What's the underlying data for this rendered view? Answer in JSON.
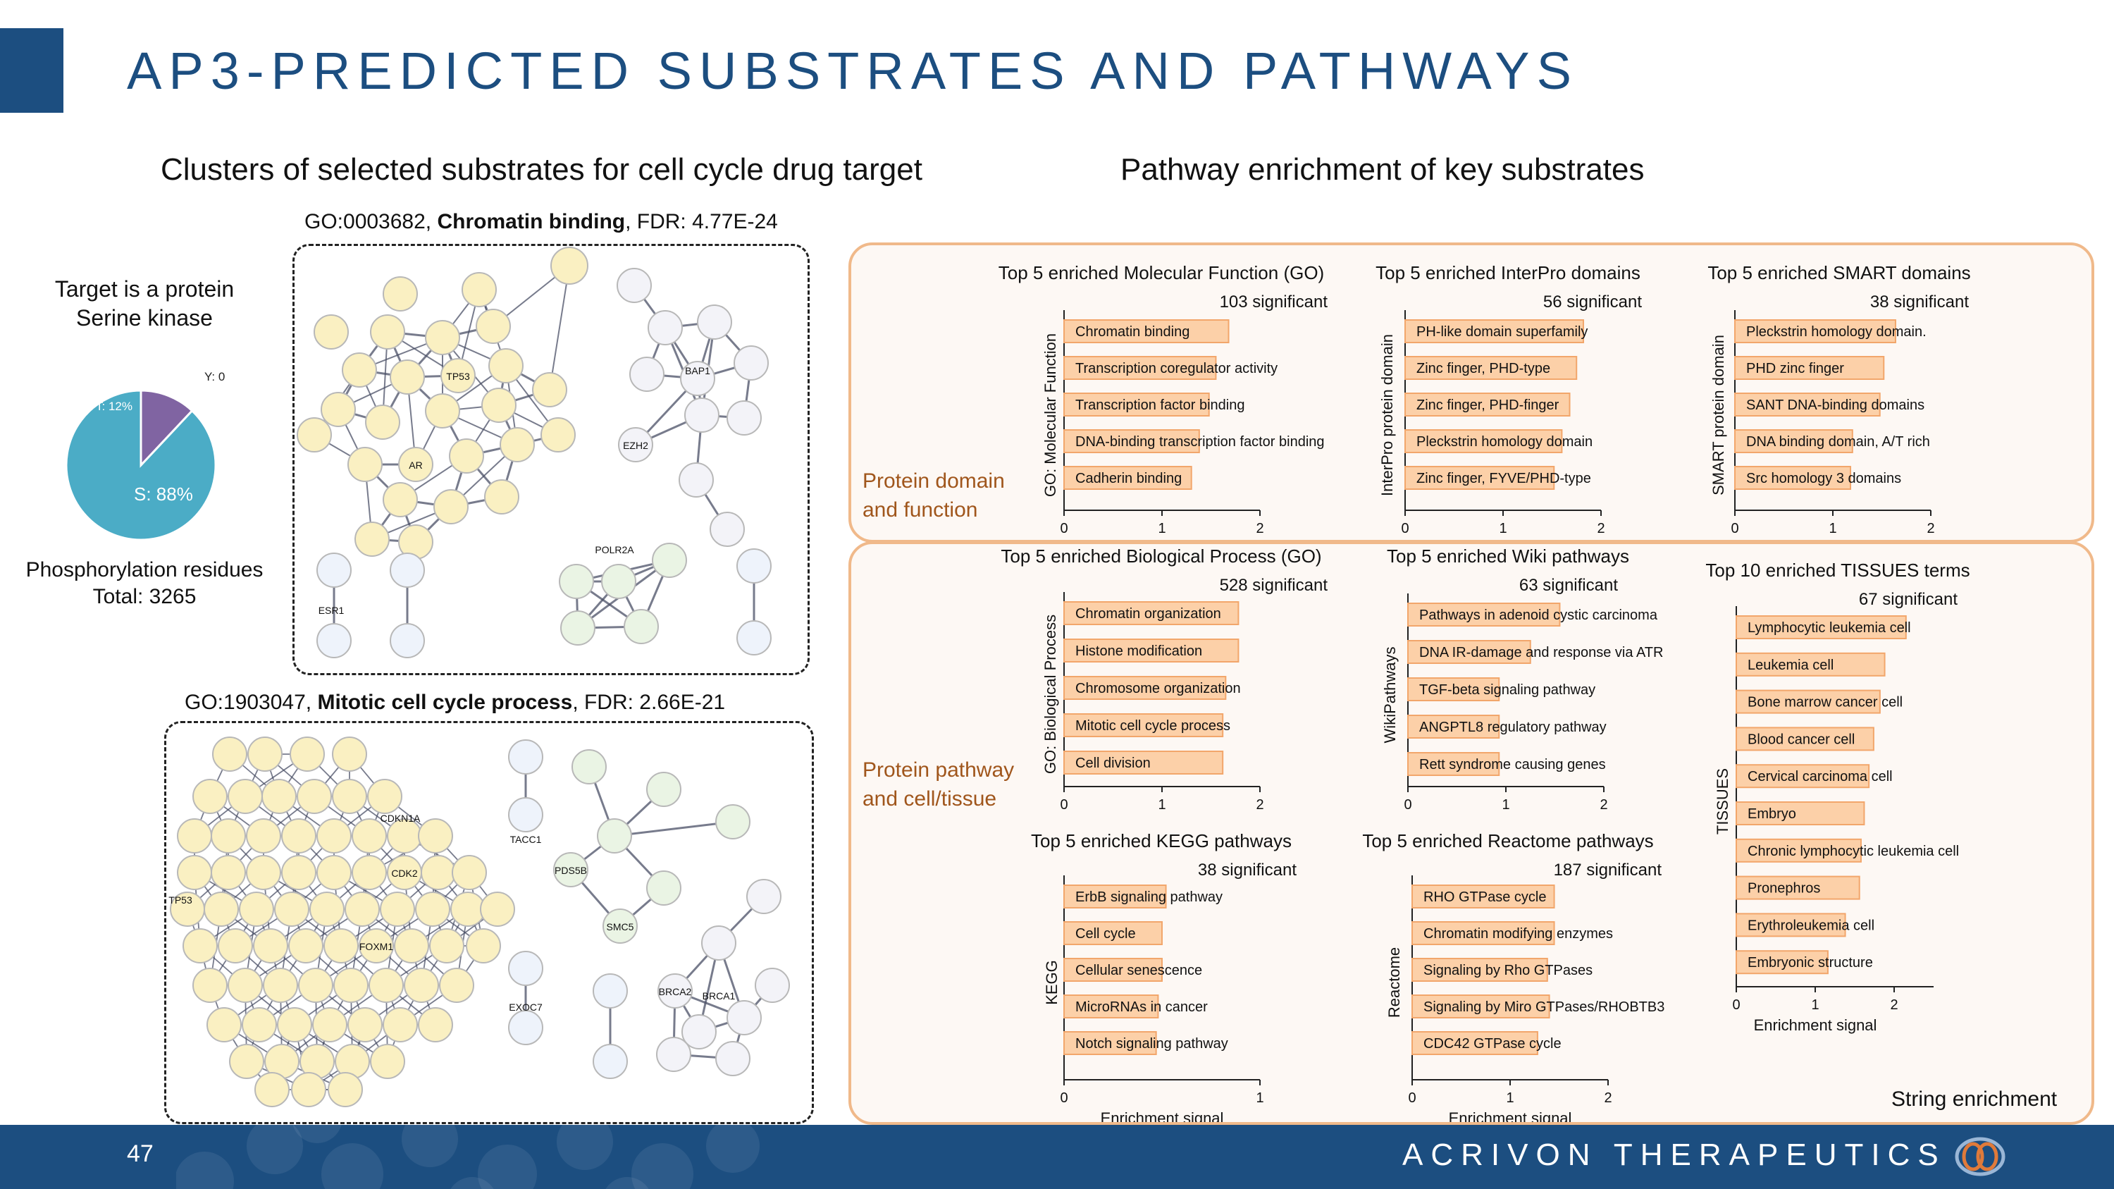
{
  "slide": {
    "title": "AP3-PREDICTED SUBSTRATES AND PATHWAYS",
    "page_number": "47",
    "company": "ACRIVON THERAPEUTICS"
  },
  "left": {
    "heading": "Clusters of selected substrates for cell cycle drug target",
    "target_line1": "Target is a protein",
    "target_line2": "Serine kinase",
    "residues_line1": "Phosphorylation residues",
    "residues_line2": "Total: 3265",
    "go1": {
      "id": "GO:0003682, ",
      "name": "Chromatin binding",
      "fdr": ", FDR: 4.77E-24"
    },
    "go2": {
      "id": "GO:1903047, ",
      "name": "Mitotic cell cycle process",
      "fdr": ", FDR: 2.66E-21"
    },
    "network1_nodes": [
      "TP53",
      "AR",
      "BAP1",
      "EZH2",
      "POLR2A",
      "ESR1"
    ],
    "network2_nodes": [
      "CDKN1A",
      "CDK2",
      "TP53",
      "FOXM1",
      "TACC1",
      "PDS5B",
      "SMC5",
      "EXOC7",
      "BRCA2",
      "BRCA1"
    ]
  },
  "pie": {
    "type": "pie",
    "slices": [
      {
        "label": "S: 88%",
        "value": 88,
        "color": "#4bacc6"
      },
      {
        "label": "T: 12%",
        "value": 12,
        "color": "#8064a2"
      },
      {
        "label": "Y: 0",
        "value": 0,
        "color": "#9bbb59"
      }
    ]
  },
  "right": {
    "heading": "Pathway enrichment of key substrates",
    "panel1_label_line1": "Protein domain",
    "panel1_label_line2": "and function",
    "panel2_label_line1": "Protein pathway",
    "panel2_label_line2": "and cell/tissue",
    "footnote": "String enrichment"
  },
  "chart_data": [
    {
      "id": "mf",
      "type": "bar",
      "title": "Top 5 enriched Molecular Function (GO)",
      "subtitle": "103 significant",
      "ylabel": "GO: Molecular Function",
      "xlabel": "",
      "xlim": [
        0,
        2
      ],
      "xticks": [
        0,
        1,
        2
      ],
      "categories": [
        "Chromatin binding",
        "Transcription coregulator activity",
        "Transcription factor binding",
        "DNA-binding transcription factor binding",
        "Cadherin binding"
      ],
      "values": [
        1.68,
        1.55,
        1.48,
        1.38,
        1.3
      ]
    },
    {
      "id": "interpro",
      "type": "bar",
      "title": "Top 5 enriched InterPro domains",
      "subtitle": "56 significant",
      "ylabel": "InterPro protein domain",
      "xlabel": "",
      "xlim": [
        0,
        2
      ],
      "xticks": [
        0,
        1,
        2
      ],
      "categories": [
        "PH-like domain superfamily",
        "Zinc finger, PHD-type",
        "Zinc finger, PHD-finger",
        "Pleckstrin homology domain",
        "Zinc finger, FYVE/PHD-type"
      ],
      "values": [
        1.82,
        1.75,
        1.68,
        1.6,
        1.52
      ]
    },
    {
      "id": "smart",
      "type": "bar",
      "title": "Top 5 enriched SMART domains",
      "subtitle": "38 significant",
      "ylabel": "SMART protein domain",
      "xlabel": "",
      "xlim": [
        0,
        2
      ],
      "xticks": [
        0,
        1,
        2
      ],
      "categories": [
        "Pleckstrin homology domain.",
        "PHD zinc finger",
        "SANT DNA-binding domains",
        "DNA binding domain, A/T rich",
        "Src homology 3 domains"
      ],
      "values": [
        1.64,
        1.52,
        1.48,
        1.2,
        1.18
      ]
    },
    {
      "id": "bp",
      "type": "bar",
      "title": "Top 5 enriched Biological Process (GO)",
      "subtitle": "528 significant",
      "ylabel": "GO: Biological Process",
      "xlabel": "",
      "xlim": [
        0,
        2
      ],
      "xticks": [
        0,
        1,
        2
      ],
      "categories": [
        "Chromatin organization",
        "Histone modification",
        "Chromosome organization",
        "Mitotic cell cycle process",
        "Cell division"
      ],
      "values": [
        1.78,
        1.78,
        1.65,
        1.62,
        1.62
      ]
    },
    {
      "id": "wiki",
      "type": "bar",
      "title": "Top 5 enriched Wiki pathways",
      "subtitle": "63 significant",
      "ylabel": "WikiPathways",
      "xlabel": "",
      "xlim": [
        0,
        2
      ],
      "xticks": [
        0,
        1,
        2
      ],
      "categories": [
        "Pathways in adenoid cystic carcinoma",
        "DNA IR-damage and response via ATR",
        "TGF-beta signaling pathway",
        "ANGPTL8 regulatory pathway",
        "Rett syndrome causing genes"
      ],
      "values": [
        1.55,
        1.25,
        0.93,
        0.93,
        0.93
      ]
    },
    {
      "id": "tissues",
      "type": "bar",
      "title": "Top 10 enriched TISSUES terms",
      "subtitle": "67 significant",
      "ylabel": "TISSUES",
      "xlabel": "Enrichment signal",
      "xlim": [
        0,
        2.5
      ],
      "xticks": [
        0,
        1,
        2
      ],
      "categories": [
        "Lymphocytic leukemia cell",
        "Leukemia cell",
        "Bone marrow cancer cell",
        "Blood cancer cell",
        "Cervical carcinoma cell",
        "Embryo",
        "Chronic lymphocytic leukemia cell",
        "Pronephros",
        "Erythroleukemia cell",
        "Embryonic structure"
      ],
      "values": [
        2.15,
        1.88,
        1.82,
        1.74,
        1.68,
        1.62,
        1.58,
        1.56,
        1.38,
        1.16
      ]
    },
    {
      "id": "kegg",
      "type": "bar",
      "title": "Top 5 enriched KEGG pathways",
      "subtitle": "38 significant",
      "ylabel": "KEGG",
      "xlabel": "Enrichment signal",
      "xlim": [
        0,
        1
      ],
      "xticks": [
        0,
        1
      ],
      "categories": [
        "ErbB signaling pathway",
        "Cell cycle",
        "Cellular senescence",
        "MicroRNAs in cancer",
        "Notch signaling pathway"
      ],
      "values": [
        0.52,
        0.5,
        0.5,
        0.48,
        0.47
      ]
    },
    {
      "id": "reactome",
      "type": "bar",
      "title": "Top 5 enriched Reactome pathways",
      "subtitle": "187 significant",
      "ylabel": "Reactome",
      "xlabel": "Enrichment signal",
      "xlim": [
        0,
        2
      ],
      "xticks": [
        0,
        1,
        2
      ],
      "categories": [
        "RHO GTPase cycle",
        "Chromatin modifying enzymes",
        "Signaling by Rho GTPases",
        "Signaling by Miro GTPases/RHOBTB3",
        "CDC42 GTPase cycle"
      ],
      "values": [
        1.45,
        1.45,
        1.38,
        1.4,
        1.28
      ]
    }
  ]
}
